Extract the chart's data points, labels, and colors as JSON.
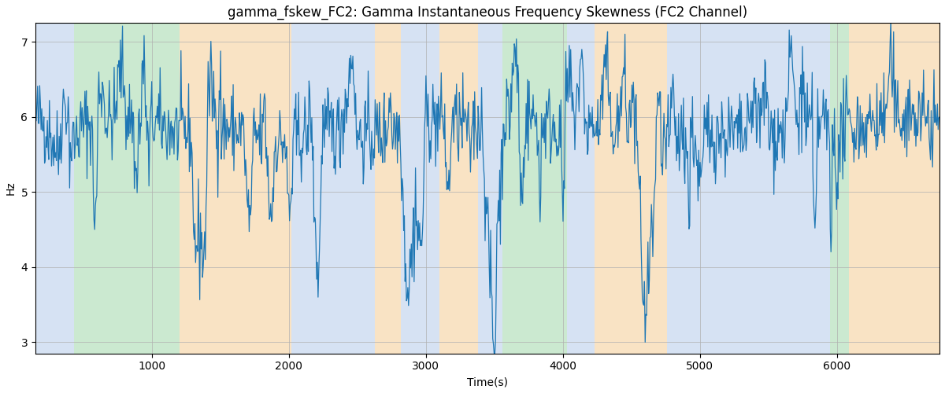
{
  "title": "gamma_fskew_FC2: Gamma Instantaneous Frequency Skewness (FC2 Channel)",
  "xlabel": "Time(s)",
  "ylabel": "Hz",
  "xlim": [
    150,
    6750
  ],
  "ylim": [
    2.85,
    7.25
  ],
  "yticks": [
    3,
    4,
    5,
    6,
    7
  ],
  "xticks": [
    1000,
    2000,
    3000,
    4000,
    5000,
    6000
  ],
  "line_color": "#1f77b4",
  "line_width": 0.9,
  "bg_color": "#ffffff",
  "grid_color": "#b0b0b0",
  "title_fontsize": 12,
  "label_fontsize": 10,
  "bands": [
    {
      "xmin": 150,
      "xmax": 430,
      "color": "#aec6e8",
      "alpha": 0.5
    },
    {
      "xmin": 430,
      "xmax": 1200,
      "color": "#98d4a3",
      "alpha": 0.5
    },
    {
      "xmin": 1200,
      "xmax": 2020,
      "color": "#f5c98a",
      "alpha": 0.5
    },
    {
      "xmin": 2020,
      "xmax": 2630,
      "color": "#aec6e8",
      "alpha": 0.5
    },
    {
      "xmin": 2630,
      "xmax": 2820,
      "color": "#f5c98a",
      "alpha": 0.5
    },
    {
      "xmin": 2820,
      "xmax": 3100,
      "color": "#aec6e8",
      "alpha": 0.5
    },
    {
      "xmin": 3100,
      "xmax": 3380,
      "color": "#f5c98a",
      "alpha": 0.5
    },
    {
      "xmin": 3380,
      "xmax": 3560,
      "color": "#aec6e8",
      "alpha": 0.5
    },
    {
      "xmin": 3560,
      "xmax": 4030,
      "color": "#98d4a3",
      "alpha": 0.5
    },
    {
      "xmin": 4030,
      "xmax": 4230,
      "color": "#aec6e8",
      "alpha": 0.5
    },
    {
      "xmin": 4230,
      "xmax": 4760,
      "color": "#f5c98a",
      "alpha": 0.5
    },
    {
      "xmin": 4760,
      "xmax": 5100,
      "color": "#aec6e8",
      "alpha": 0.5
    },
    {
      "xmin": 5100,
      "xmax": 5950,
      "color": "#aec6e8",
      "alpha": 0.5
    },
    {
      "xmin": 5950,
      "xmax": 6090,
      "color": "#98d4a3",
      "alpha": 0.5
    },
    {
      "xmin": 6090,
      "xmax": 6750,
      "color": "#f5c98a",
      "alpha": 0.5
    }
  ],
  "seed": 42,
  "n_points": 1300,
  "t_start": 150,
  "t_end": 6750,
  "base_mean": 5.85,
  "noise_std": 0.28
}
